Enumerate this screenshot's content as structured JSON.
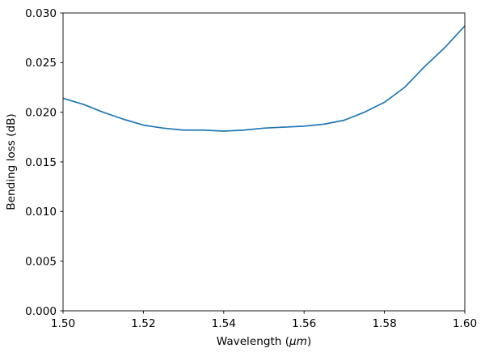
{
  "figure": {
    "background": "#ffffff"
  },
  "chart_data": {
    "type": "line",
    "title": "",
    "xlabel": "Wavelength (μm)",
    "xlabel_parts": {
      "pre": "Wavelength (",
      "italic": "μm",
      "post": ")"
    },
    "ylabel": "Bending loss (dB)",
    "xlim": [
      1.5,
      1.6
    ],
    "ylim": [
      0.0,
      0.03
    ],
    "xticks": [
      1.5,
      1.52,
      1.54,
      1.56,
      1.58,
      1.6
    ],
    "xtick_labels": [
      "1.50",
      "1.52",
      "1.54",
      "1.56",
      "1.58",
      "1.60"
    ],
    "yticks": [
      0.0,
      0.005,
      0.01,
      0.015,
      0.02,
      0.025,
      0.03
    ],
    "ytick_labels": [
      "0.000",
      "0.005",
      "0.010",
      "0.015",
      "0.020",
      "0.025",
      "0.030"
    ],
    "grid": false,
    "legend": "none",
    "series": [
      {
        "name": "bending loss",
        "color": "#1f77b4",
        "x": [
          1.5,
          1.505,
          1.51,
          1.515,
          1.52,
          1.525,
          1.53,
          1.535,
          1.54,
          1.545,
          1.55,
          1.555,
          1.56,
          1.565,
          1.57,
          1.575,
          1.58,
          1.585,
          1.59,
          1.595,
          1.6
        ],
        "y": [
          0.0214,
          0.0208,
          0.02,
          0.0193,
          0.0187,
          0.0184,
          0.0182,
          0.0182,
          0.0181,
          0.0182,
          0.0184,
          0.0185,
          0.0186,
          0.0188,
          0.0192,
          0.02,
          0.021,
          0.0225,
          0.0246,
          0.0265,
          0.0287
        ]
      }
    ]
  }
}
